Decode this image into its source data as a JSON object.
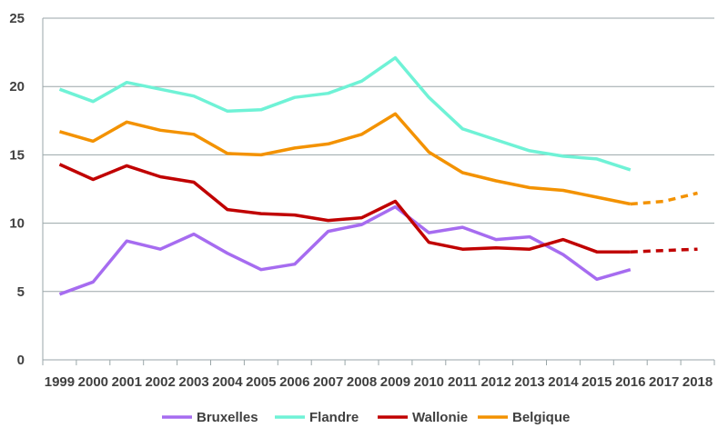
{
  "chart_data": {
    "type": "line",
    "x": [
      "1999",
      "2000",
      "2001",
      "2002",
      "2003",
      "2004",
      "2005",
      "2006",
      "2007",
      "2008",
      "2009",
      "2010",
      "2011",
      "2012",
      "2013",
      "2014",
      "2015",
      "2016",
      "2017",
      "2018"
    ],
    "ylim": [
      0,
      25
    ],
    "yticks": [
      "0",
      "5",
      "10",
      "15",
      "20",
      "25"
    ],
    "grid": true,
    "legend_position": "bottom",
    "dashed_from": "2016",
    "series": [
      {
        "name": "Bruxelles",
        "color": "#a66cf0",
        "values": [
          4.8,
          5.7,
          8.7,
          8.1,
          9.2,
          7.8,
          6.6,
          7.0,
          9.4,
          9.9,
          11.2,
          9.3,
          9.7,
          8.8,
          9.0,
          7.7,
          5.9,
          6.6,
          null,
          null
        ]
      },
      {
        "name": "Flandre",
        "color": "#6ff2d6",
        "values": [
          19.8,
          18.9,
          20.3,
          19.8,
          19.3,
          18.2,
          18.3,
          19.2,
          19.5,
          20.4,
          22.1,
          19.2,
          16.9,
          16.1,
          15.3,
          14.9,
          14.7,
          13.9,
          null,
          null
        ]
      },
      {
        "name": "Wallonie",
        "color": "#c00000",
        "values": [
          14.3,
          13.2,
          14.2,
          13.4,
          13.0,
          11.0,
          10.7,
          10.6,
          10.2,
          10.4,
          11.6,
          8.6,
          8.1,
          8.2,
          8.1,
          8.8,
          7.9,
          7.9,
          8.0,
          8.1
        ]
      },
      {
        "name": "Belgique",
        "color": "#f39200",
        "values": [
          16.7,
          16.0,
          17.4,
          16.8,
          16.5,
          15.1,
          15.0,
          15.5,
          15.8,
          16.5,
          18.0,
          15.2,
          13.7,
          13.1,
          12.6,
          12.4,
          11.9,
          11.4,
          11.6,
          12.2
        ]
      }
    ]
  }
}
